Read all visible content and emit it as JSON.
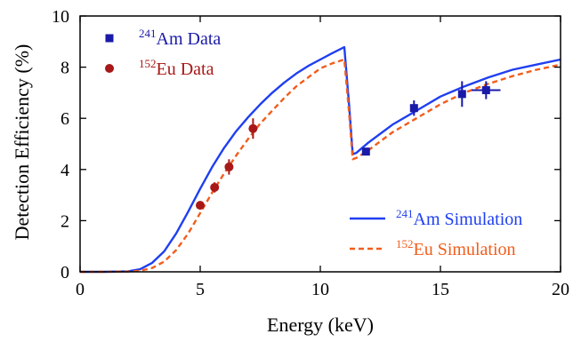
{
  "chart_data": {
    "type": "scatter",
    "xlabel": "Energy (keV)",
    "ylabel": "Detection Efficiency (%)",
    "xlim": [
      0,
      20
    ],
    "ylim": [
      0,
      10
    ],
    "xticks": [
      "0",
      "5",
      "10",
      "15",
      "20"
    ],
    "yticks": [
      "0",
      "2",
      "4",
      "6",
      "8",
      "10"
    ],
    "grid": false,
    "legend_placement": [
      "top-left",
      "bottom-right"
    ],
    "series": [
      {
        "name_sup": "241",
        "name_main": "Am Data",
        "kind": "points",
        "marker": "square",
        "color": "#1a1aa8",
        "x": [
          11.9,
          13.9,
          15.9,
          16.9
        ],
        "y": [
          4.7,
          6.4,
          6.95,
          7.1
        ],
        "xerr": [
          0.15,
          0.15,
          0.15,
          0.6
        ],
        "yerr": [
          0.1,
          0.3,
          0.5,
          0.35
        ]
      },
      {
        "name_sup": "152",
        "name_main": "Eu Data",
        "kind": "points",
        "marker": "circle",
        "color": "#a81818",
        "x": [
          5.0,
          5.6,
          6.2,
          7.2
        ],
        "y": [
          2.6,
          3.3,
          4.1,
          5.6
        ],
        "xerr": [
          0.1,
          0.1,
          0.1,
          0.1
        ],
        "yerr": [
          0.15,
          0.2,
          0.3,
          0.4
        ]
      },
      {
        "name_sup": "241",
        "name_main": "Am Simulation",
        "kind": "line",
        "style": "solid",
        "color": "#1f3ff0",
        "x": [
          0,
          1,
          2,
          2.5,
          3,
          3.5,
          4,
          4.5,
          5,
          5.5,
          6,
          6.5,
          7,
          7.5,
          8,
          8.5,
          9,
          9.5,
          10,
          10.5,
          11.0,
          11.2,
          11.35,
          11.5,
          12,
          12.5,
          13,
          14,
          15,
          16,
          17,
          18,
          19,
          20
        ],
        "y": [
          0,
          0,
          0.02,
          0.1,
          0.35,
          0.8,
          1.5,
          2.35,
          3.25,
          4.1,
          4.85,
          5.5,
          6.05,
          6.55,
          7.0,
          7.4,
          7.75,
          8.05,
          8.3,
          8.55,
          8.78,
          6.5,
          4.6,
          4.65,
          5.05,
          5.4,
          5.75,
          6.3,
          6.85,
          7.25,
          7.6,
          7.9,
          8.1,
          8.3
        ]
      },
      {
        "name_sup": "152",
        "name_main": "Eu Simulation",
        "kind": "line",
        "style": "dashed",
        "color": "#f25d1c",
        "x": [
          0,
          1,
          2,
          2.5,
          3,
          3.5,
          4,
          4.5,
          5,
          5.5,
          6,
          6.5,
          7,
          7.5,
          8,
          8.5,
          9,
          9.5,
          10,
          10.5,
          11.0,
          11.2,
          11.35,
          11.5,
          12,
          12.5,
          13,
          14,
          15,
          16,
          17,
          18,
          19,
          20
        ],
        "y": [
          0,
          0,
          0.01,
          0.04,
          0.15,
          0.4,
          0.85,
          1.5,
          2.3,
          3.1,
          3.85,
          4.55,
          5.2,
          5.8,
          6.3,
          6.8,
          7.25,
          7.6,
          7.95,
          8.15,
          8.3,
          6.2,
          4.4,
          4.45,
          4.75,
          5.1,
          5.45,
          6.0,
          6.55,
          7.0,
          7.35,
          7.65,
          7.9,
          8.1
        ]
      }
    ]
  }
}
